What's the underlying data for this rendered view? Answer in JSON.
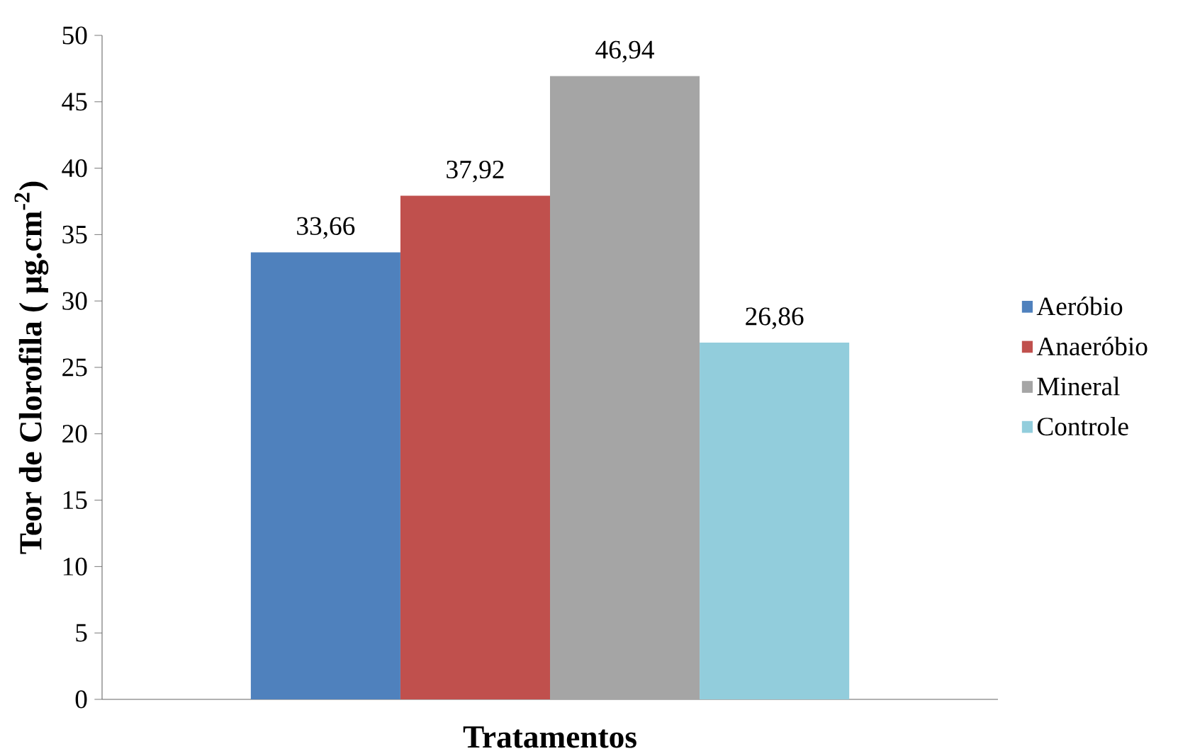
{
  "chart_data": {
    "type": "bar",
    "xlabel": "Tratamentos",
    "ylabel": "Teor de Clorofila ( µg.cm$^{-2}$)",
    "categories": [
      null
    ],
    "series": [
      {
        "name": "Aeróbio",
        "color": "#4f81bd",
        "values": [
          33.66
        ],
        "value_labels": [
          "33,66"
        ]
      },
      {
        "name": "Anaeróbio",
        "color": "#c0504d",
        "values": [
          37.92
        ],
        "value_labels": [
          "37,92"
        ]
      },
      {
        "name": "Mineral",
        "color": "#a5a5a5",
        "values": [
          46.94
        ],
        "value_labels": [
          "46,94"
        ]
      },
      {
        "name": "Controle",
        "color": "#92cddc",
        "values": [
          26.86
        ],
        "value_labels": [
          "26,86"
        ]
      }
    ],
    "ylim": [
      0,
      50
    ],
    "yticks": [
      0,
      5,
      10,
      15,
      20,
      25,
      30,
      35,
      40,
      45,
      50
    ],
    "grid": false,
    "legend": "right"
  }
}
